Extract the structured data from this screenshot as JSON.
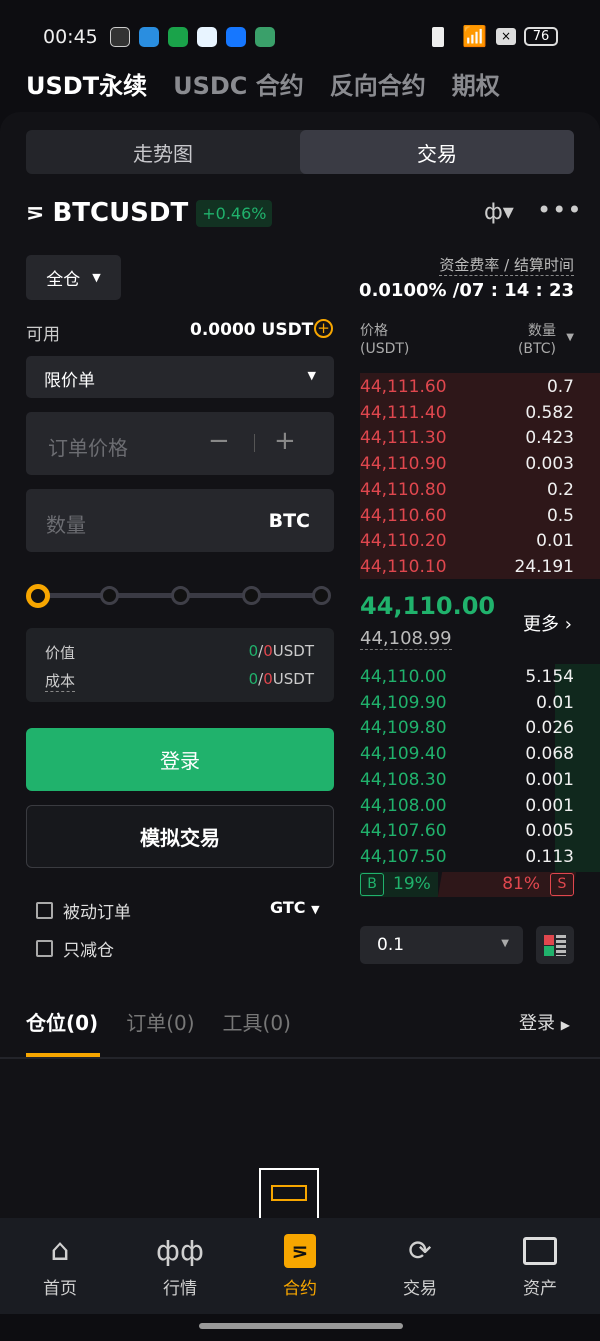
{
  "status": {
    "time": "00:45",
    "battery": "76"
  },
  "top_tabs": [
    {
      "label": "USDT永续",
      "active": true
    },
    {
      "label": "USDC 合约"
    },
    {
      "label": "反向合约"
    },
    {
      "label": "期权"
    }
  ],
  "segment": [
    {
      "label": "走势图"
    },
    {
      "label": "交易",
      "active": true
    }
  ],
  "symbol": {
    "name": "BTCUSDT",
    "change": "+0.46%"
  },
  "margin_mode": "全仓",
  "funding": {
    "label": "资金费率 / 结算时间",
    "value": "0.0100% /07 : 14 : 23"
  },
  "available": {
    "label": "可用",
    "value": "0.0000 USDT"
  },
  "order_type": "限价单",
  "price_input": {
    "placeholder": "订单价格"
  },
  "qty_input": {
    "placeholder": "数量",
    "unit": "BTC"
  },
  "leverage_slider": {
    "value_percent": 0,
    "stops": 5
  },
  "summary": [
    {
      "label": "价值",
      "buy": "0",
      "sep": "/",
      "sell": "0",
      "unit": "USDT"
    },
    {
      "label": "成本",
      "buy": "0",
      "sep": "/",
      "sell": "0",
      "unit": "USDT"
    }
  ],
  "login_button": "登录",
  "demo_button": "模拟交易",
  "options": {
    "post_only": "被动订单",
    "reduce_only": "只减仓",
    "tif": "GTC"
  },
  "orderbook": {
    "price_header": "价格",
    "price_unit": "(USDT)",
    "qty_header": "数量",
    "qty_unit": "(BTC)",
    "asks": [
      [
        "44,111.60",
        "0.7"
      ],
      [
        "44,111.40",
        "0.582"
      ],
      [
        "44,111.30",
        "0.423"
      ],
      [
        "44,110.90",
        "0.003"
      ],
      [
        "44,110.80",
        "0.2"
      ],
      [
        "44,110.60",
        "0.5"
      ],
      [
        "44,110.20",
        "0.01"
      ],
      [
        "44,110.10",
        "24.191"
      ]
    ],
    "last_price": "44,110.00",
    "mark_price": "44,108.99",
    "more": "更多",
    "bids": [
      [
        "44,110.00",
        "5.154"
      ],
      [
        "44,109.90",
        "0.01"
      ],
      [
        "44,109.80",
        "0.026"
      ],
      [
        "44,109.40",
        "0.068"
      ],
      [
        "44,108.30",
        "0.001"
      ],
      [
        "44,108.00",
        "0.001"
      ],
      [
        "44,107.60",
        "0.005"
      ],
      [
        "44,107.50",
        "0.113"
      ]
    ],
    "buy_ratio": "19%",
    "sell_ratio": "81%",
    "buy_label": "B",
    "sell_label": "S",
    "tick": "0.1"
  },
  "bottom_tabs": [
    {
      "label": "仓位(0)",
      "active": true
    },
    {
      "label": "订单(0)"
    },
    {
      "label": "工具(0)"
    }
  ],
  "bottom_login": "登录",
  "nav": [
    {
      "label": "首页",
      "icon": "home-icon"
    },
    {
      "label": "行情",
      "icon": "candlestick-icon"
    },
    {
      "label": "合约",
      "icon": "contract-icon",
      "active": true
    },
    {
      "label": "交易",
      "icon": "exchange-icon"
    },
    {
      "label": "资产",
      "icon": "wallet-icon"
    }
  ],
  "colors": {
    "green": "#20b26c",
    "red": "#e0474e",
    "accent": "#f7a600"
  }
}
